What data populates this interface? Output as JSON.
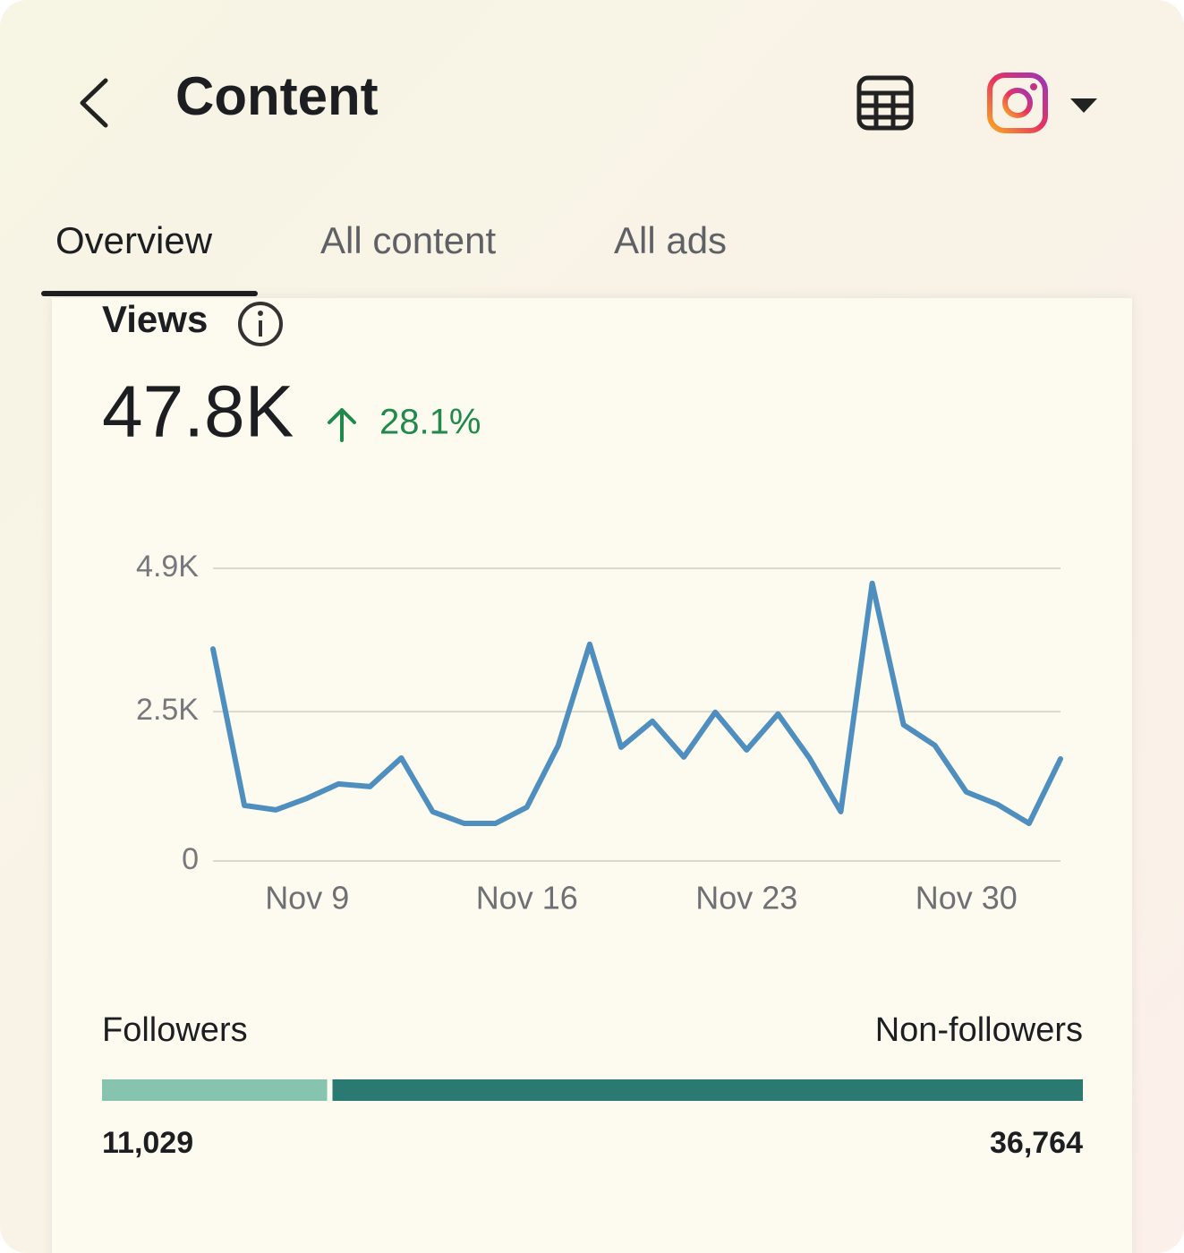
{
  "header": {
    "title": "Content"
  },
  "tabs": [
    "Overview",
    "All content",
    "All ads"
  ],
  "card": {
    "title": "Views",
    "total": "47.8K",
    "change": "28.1%"
  },
  "chart_data": {
    "type": "line",
    "color": "#4f8fbf",
    "categories": [
      null,
      null,
      null,
      "Nov 9",
      null,
      null,
      null,
      null,
      null,
      null,
      "Nov 16",
      null,
      null,
      null,
      null,
      null,
      null,
      "Nov 23",
      null,
      null,
      null,
      null,
      null,
      null,
      "Nov 30",
      null,
      null,
      null
    ],
    "values": [
      3550,
      930,
      855,
      1050,
      1290,
      1245,
      1725,
      825,
      630,
      630,
      900,
      1935,
      3630,
      1905,
      2340,
      1740,
      2490,
      1860,
      2460,
      1725,
      825,
      4650,
      2280,
      1935,
      1155,
      945,
      630,
      1710
    ],
    "ylim": [
      0,
      4900
    ],
    "yticks": [
      0,
      {
        "value": 2500,
        "label": "2.5K"
      },
      {
        "value": 4900,
        "label": "4.9K"
      }
    ],
    "grid": true
  },
  "audience": [
    {
      "name": "Followers",
      "value": 11029,
      "value_label": "11,029",
      "color": "#86c4b0"
    },
    {
      "name": "Non-followers",
      "value": 36764,
      "value_label": "36,764",
      "color": "#2a7a72"
    }
  ]
}
